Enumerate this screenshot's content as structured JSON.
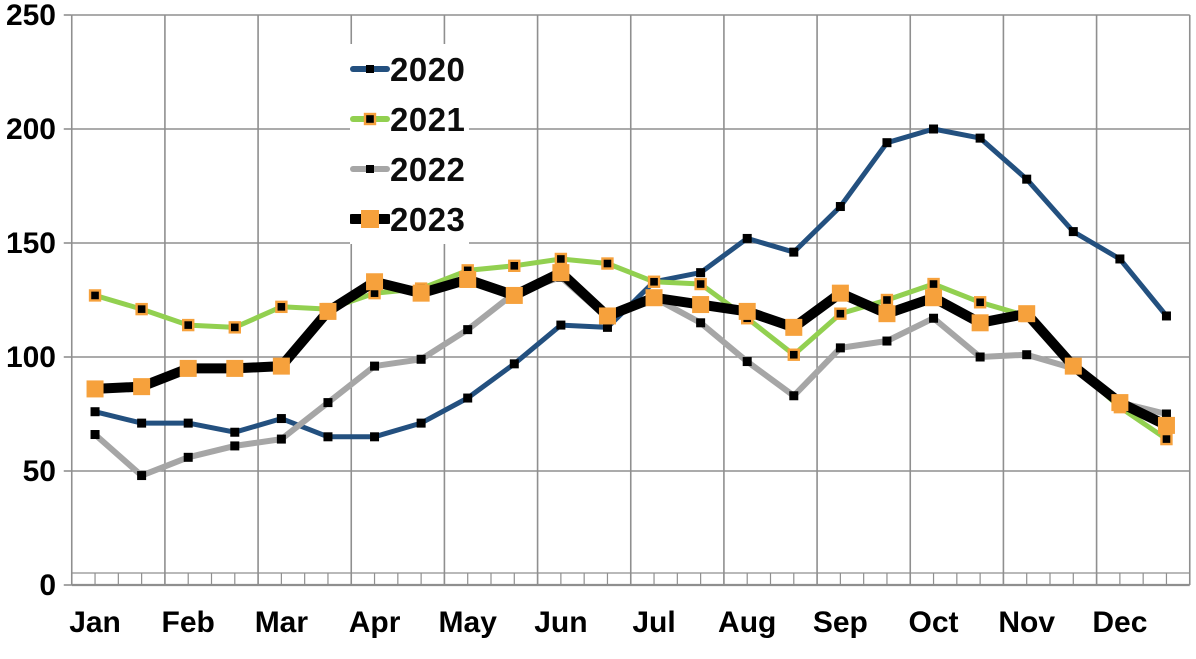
{
  "chart_data": {
    "type": "line",
    "title": "",
    "xlabel": "",
    "ylabel": "",
    "categories": [
      "Jan",
      "Feb",
      "Mar",
      "Apr",
      "May",
      "Jun",
      "Jul",
      "Aug",
      "Sep",
      "Oct",
      "Nov",
      "Dec"
    ],
    "points_per_month": 2,
    "x_note": "semi-monthly data points, 2 per month",
    "ylim": [
      0,
      250
    ],
    "yticks": [
      0,
      50,
      100,
      150,
      200,
      250
    ],
    "grid": true,
    "legend_position": "inside-top-left",
    "grid_color": "#8f8f8f",
    "axis_text_color": "#000000",
    "series": [
      {
        "name": "2020",
        "color": "#23507F",
        "marker": "small-black-square",
        "marker_color": "#000000",
        "values": [
          76,
          71,
          71,
          67,
          73,
          65,
          65,
          71,
          82,
          97,
          114,
          113,
          133,
          137,
          152,
          146,
          166,
          194,
          200,
          196,
          178,
          155,
          143,
          118
        ]
      },
      {
        "name": "2021",
        "color": "#92D050",
        "marker": "black-square-orange-border",
        "marker_color": "#000000",
        "marker_border_color": "#F6A13C",
        "values": [
          127,
          121,
          114,
          113,
          122,
          121,
          128,
          130,
          138,
          140,
          143,
          141,
          133,
          132,
          117,
          101,
          119,
          125,
          132,
          124,
          118,
          96,
          78,
          64
        ]
      },
      {
        "name": "2022",
        "color": "#A6A6A6",
        "marker": "small-black-square",
        "marker_color": "#000000",
        "values": [
          66,
          48,
          56,
          61,
          64,
          80,
          96,
          99,
          112,
          128,
          135,
          117,
          126,
          115,
          98,
          83,
          104,
          107,
          117,
          100,
          101,
          95,
          80,
          75
        ]
      },
      {
        "name": "2023",
        "color": "#000000",
        "marker": "large-orange-square",
        "marker_color": "#F6A13C",
        "values": [
          86,
          87,
          95,
          95,
          96,
          120,
          133,
          128,
          134,
          127,
          137,
          118,
          126,
          123,
          120,
          113,
          128,
          119,
          126,
          115,
          119,
          96,
          80,
          70
        ]
      }
    ]
  }
}
